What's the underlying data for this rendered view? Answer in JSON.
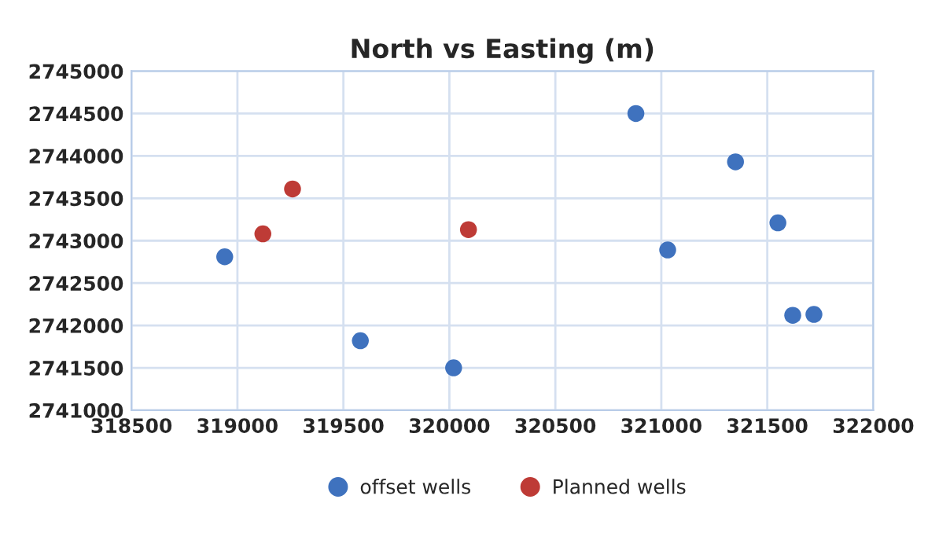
{
  "chart_data": {
    "type": "scatter",
    "title": "North vs Easting (m)",
    "series": [
      {
        "name": "offset wells",
        "color": "#3f72be",
        "x": [
          318940,
          319580,
          320020,
          320880,
          321030,
          321350,
          321550,
          321620,
          321720
        ],
        "values": [
          2742810,
          2741820,
          2741500,
          2744500,
          2742890,
          2743930,
          2743210,
          2742120,
          2742130
        ]
      },
      {
        "name": "Planned wells",
        "color": "#be3b36",
        "x": [
          319120,
          319260,
          320090
        ],
        "values": [
          2743080,
          2743610,
          2743130
        ]
      }
    ],
    "xlim": [
      318500,
      322000
    ],
    "xticks": [
      318500,
      319000,
      319500,
      320000,
      320500,
      321000,
      321500,
      322000
    ],
    "ylim": [
      2741000,
      2745000
    ],
    "yticks": [
      2741000,
      2741500,
      2742000,
      2742500,
      2743000,
      2743500,
      2744000,
      2744500,
      2745000
    ],
    "grid": true,
    "legend": "bottom",
    "marker": "circle"
  }
}
